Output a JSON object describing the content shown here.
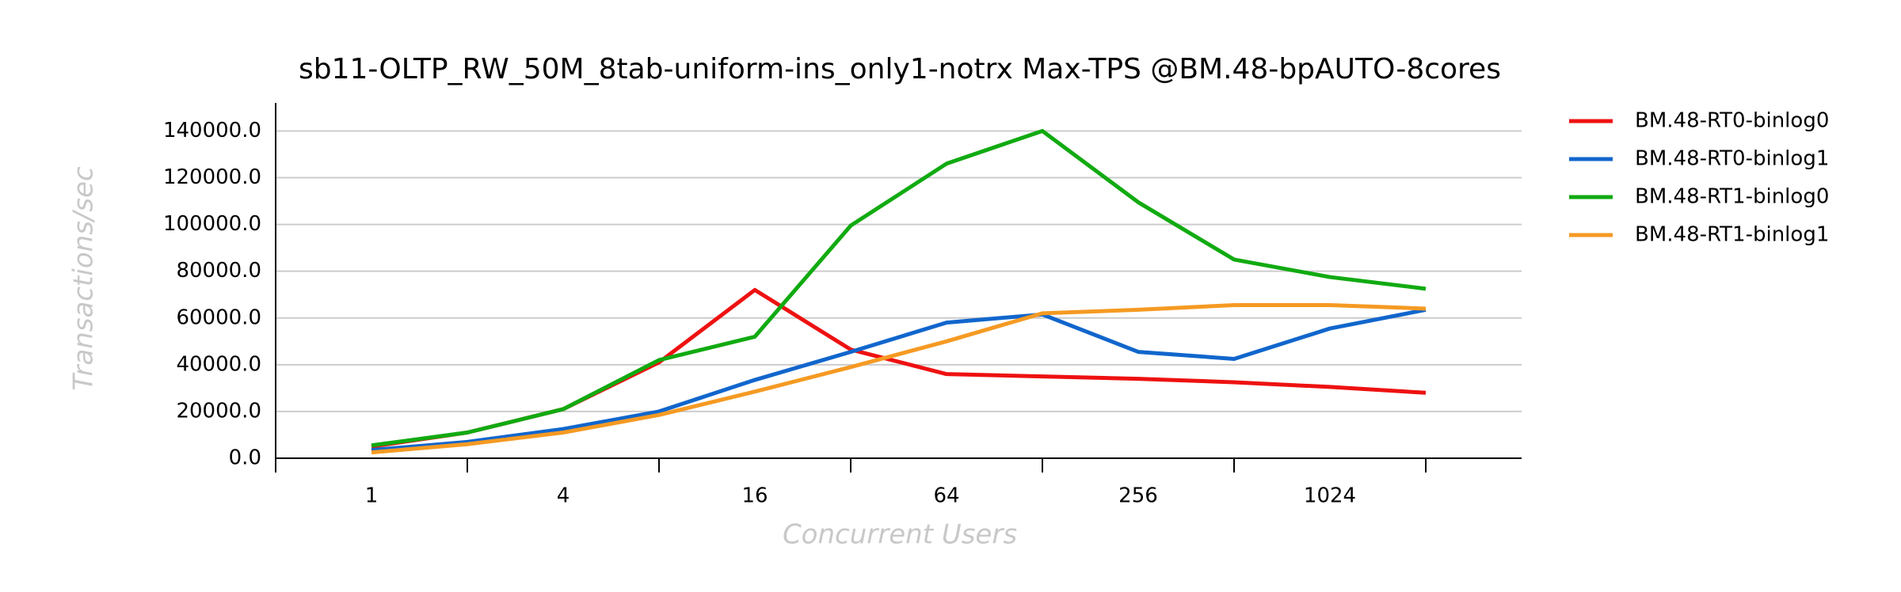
{
  "chart_data": {
    "type": "line",
    "title": "sb11-OLTP_RW_50M_8tab-uniform-ins_only1-notrx Max-TPS @BM.48-bpAUTO-8cores",
    "x_label": "Concurrent Users",
    "y_label": "Transactions/sec",
    "x": [
      1,
      2,
      4,
      8,
      16,
      32,
      64,
      128,
      256,
      512,
      1024,
      2048
    ],
    "x_log_base": 2,
    "xlim": [
      0.5,
      4096
    ],
    "xticks": [
      1,
      4,
      16,
      64,
      256,
      1024
    ],
    "x_tick_marks": [
      0.5,
      2,
      8,
      32,
      128,
      512,
      2048
    ],
    "ylim": [
      0,
      152000
    ],
    "yticks": [
      {
        "value": 0,
        "label": "0.0"
      },
      {
        "value": 20000,
        "label": "20000.0"
      },
      {
        "value": 40000,
        "label": "40000.0"
      },
      {
        "value": 60000,
        "label": "60000.0"
      },
      {
        "value": 80000,
        "label": "80000.0"
      },
      {
        "value": 100000,
        "label": "100000.0"
      },
      {
        "value": 120000,
        "label": "120000.0"
      },
      {
        "value": 140000,
        "label": "140000.0"
      }
    ],
    "grid": true,
    "legend": "outside-right",
    "series": [
      {
        "name": "BM.48-RT0-binlog0",
        "color": "#ee1111",
        "values": [
          5000,
          11000,
          21000,
          41000,
          72000,
          46500,
          36000,
          35000,
          34000,
          32500,
          30500,
          28000
        ]
      },
      {
        "name": "BM.48-RT0-binlog1",
        "color": "#1166cc",
        "values": [
          3500,
          7000,
          12500,
          20000,
          33500,
          45500,
          58000,
          61500,
          45500,
          42500,
          55500,
          63500
        ]
      },
      {
        "name": "BM.48-RT1-binlog0",
        "color": "#11aa11",
        "values": [
          5500,
          11000,
          21000,
          42000,
          52000,
          99500,
          126000,
          140000,
          109500,
          85000,
          77500,
          72500
        ]
      },
      {
        "name": "BM.48-RT1-binlog1",
        "color": "#f59a23",
        "values": [
          2500,
          6000,
          11000,
          18500,
          28500,
          39000,
          50000,
          62000,
          63500,
          65500,
          65500,
          64000
        ]
      }
    ]
  }
}
